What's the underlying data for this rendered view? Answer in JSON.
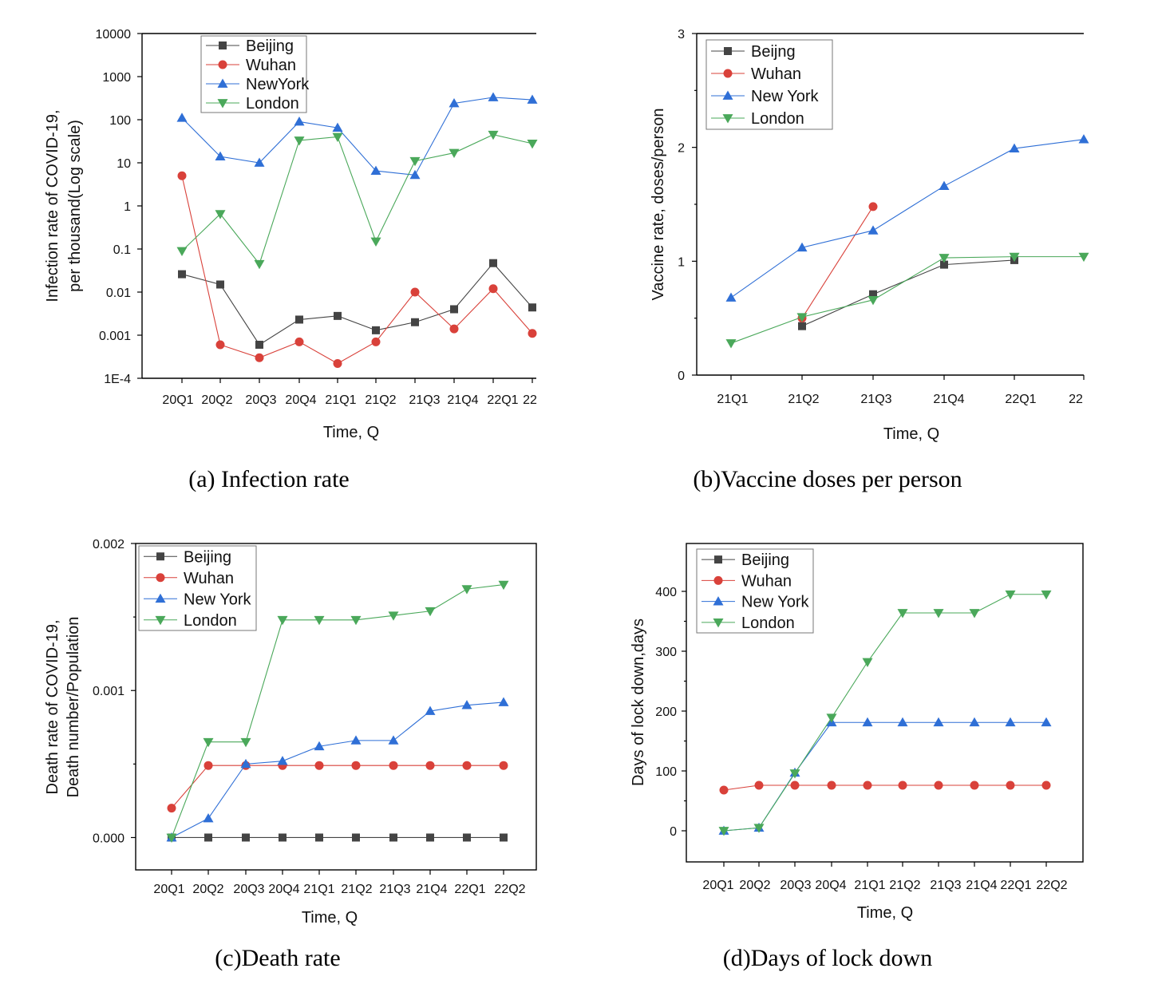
{
  "colors": {
    "Beijing": "#444444",
    "Wuhan": "#d9413a",
    "NewYork": "#2f6fd6",
    "London": "#4aa85a"
  },
  "chart_data": [
    {
      "id": "a",
      "type": "line",
      "caption": "(a) Infection rate",
      "xlabel": "Time, Q",
      "ylabel": [
        "Infection rate of COVID-19,",
        "per thousand(Log scale)"
      ],
      "yscale": "log",
      "ylim": [
        0.0001,
        10000
      ],
      "yticks": [
        10000,
        1000,
        100,
        10,
        1,
        0.1,
        0.01,
        0.001,
        0.0001
      ],
      "ytick_labels": [
        "10000",
        "1000",
        "100",
        "10",
        "1",
        "0.1",
        "0.01",
        "0.001",
        "1E-4"
      ],
      "categories": [
        "20Q1",
        "20Q2",
        "20Q3",
        "20Q4",
        "21Q1",
        "21Q2",
        "21Q3",
        "21Q4",
        "22Q1",
        "22"
      ],
      "legend": "top-left",
      "series": [
        {
          "name": "Beijing",
          "marker": "square",
          "values": [
            0.026,
            0.015,
            0.0006,
            0.0023,
            0.0028,
            0.0013,
            0.002,
            0.004,
            0.047,
            0.0044
          ]
        },
        {
          "name": "Wuhan",
          "marker": "circle",
          "values": [
            5,
            0.0006,
            0.0003,
            0.0007,
            0.00022,
            0.0007,
            0.01,
            0.0014,
            0.012,
            0.0011
          ]
        },
        {
          "name": "NewYork",
          "marker": "triangle-up",
          "values": [
            110,
            14,
            10,
            90,
            65,
            6.5,
            5.2,
            240,
            330,
            290
          ]
        },
        {
          "name": "London",
          "marker": "triangle-down",
          "values": [
            0.09,
            0.65,
            0.045,
            33,
            40,
            0.15,
            11,
            17,
            45,
            28
          ]
        }
      ]
    },
    {
      "id": "b",
      "type": "line",
      "caption": "(b)Vaccine doses per person",
      "xlabel": "Time, Q",
      "ylabel": [
        "Vaccine rate, doses/person"
      ],
      "yscale": "linear",
      "ylim": [
        0,
        3
      ],
      "yticks": [
        0,
        1,
        2,
        3
      ],
      "ytick_labels": [
        "0",
        "1",
        "2",
        "3"
      ],
      "categories": [
        "21Q1",
        "21Q2",
        "21Q3",
        "21Q4",
        "22Q1",
        "22"
      ],
      "legend": "top-left",
      "series": [
        {
          "name": "Beijng",
          "color_key": "Beijing",
          "marker": "square",
          "values": [
            null,
            0.43,
            0.71,
            0.97,
            1.01,
            null
          ]
        },
        {
          "name": "Wuhan",
          "marker": "circle",
          "values": [
            null,
            0.5,
            1.48,
            null,
            null,
            null
          ]
        },
        {
          "name": "New York",
          "color_key": "NewYork",
          "marker": "triangle-up",
          "values": [
            0.68,
            1.12,
            1.27,
            1.66,
            1.99,
            2.07
          ]
        },
        {
          "name": "London",
          "marker": "triangle-down",
          "values": [
            0.28,
            0.51,
            0.66,
            1.03,
            1.04,
            1.04
          ]
        }
      ]
    },
    {
      "id": "c",
      "type": "line",
      "caption": "(c)Death rate",
      "xlabel": "Time, Q",
      "ylabel": [
        "Death rate of COVID-19,",
        "Death number/Population"
      ],
      "yscale": "linear",
      "ylim": [
        -0.00022,
        0.002
      ],
      "yticks": [
        0,
        0.001,
        0.002
      ],
      "ytick_labels": [
        "0.000",
        "0.001",
        "0.002"
      ],
      "categories": [
        "20Q1",
        "20Q2",
        "20Q3",
        "20Q4",
        "21Q1",
        "21Q2",
        "21Q3",
        "21Q4",
        "22Q1",
        "22Q2"
      ],
      "legend": "top-left",
      "series": [
        {
          "name": "Beijing",
          "marker": "square",
          "values": [
            0,
            0,
            0,
            0,
            0,
            0,
            0,
            0,
            0,
            0
          ]
        },
        {
          "name": "Wuhan",
          "marker": "circle",
          "values": [
            0.0002,
            0.00049,
            0.00049,
            0.00049,
            0.00049,
            0.00049,
            0.00049,
            0.00049,
            0.00049,
            0.00049
          ]
        },
        {
          "name": "New York",
          "color_key": "NewYork",
          "marker": "triangle-up",
          "values": [
            0,
            0.00013,
            0.0005,
            0.00052,
            0.00062,
            0.00066,
            0.00066,
            0.00086,
            0.0009,
            0.00092
          ]
        },
        {
          "name": "London",
          "marker": "triangle-down",
          "values": [
            0,
            0.00065,
            0.00065,
            0.00148,
            0.00148,
            0.00148,
            0.00151,
            0.00154,
            0.00169,
            0.00172
          ]
        }
      ]
    },
    {
      "id": "d",
      "type": "line",
      "caption": "(d)Days of lock down",
      "xlabel": "Time, Q",
      "ylabel": [
        "Days of lock down,days"
      ],
      "yscale": "linear",
      "ylim": [
        -52,
        480
      ],
      "yticks": [
        0,
        100,
        200,
        300,
        400
      ],
      "ytick_labels": [
        "0",
        "100",
        "200",
        "300",
        "400"
      ],
      "categories": [
        "20Q1",
        "20Q2",
        "20Q3",
        "20Q4",
        "21Q1",
        "21Q2",
        "21Q3",
        "21Q4",
        "22Q1",
        "22Q2"
      ],
      "legend": "top-left",
      "series": [
        {
          "name": "Beijing",
          "marker": "square",
          "values": [
            null,
            null,
            null,
            null,
            null,
            null,
            null,
            null,
            null,
            null
          ]
        },
        {
          "name": "Wuhan",
          "marker": "circle",
          "values": [
            68,
            76,
            76,
            76,
            76,
            76,
            76,
            76,
            76,
            76
          ]
        },
        {
          "name": "New York",
          "color_key": "NewYork",
          "marker": "triangle-up",
          "values": [
            0,
            5,
            97,
            181,
            181,
            181,
            181,
            181,
            181,
            181
          ]
        },
        {
          "name": "London",
          "marker": "triangle-down",
          "values": [
            0,
            5,
            96,
            189,
            282,
            364,
            364,
            364,
            395,
            395
          ]
        }
      ]
    }
  ]
}
